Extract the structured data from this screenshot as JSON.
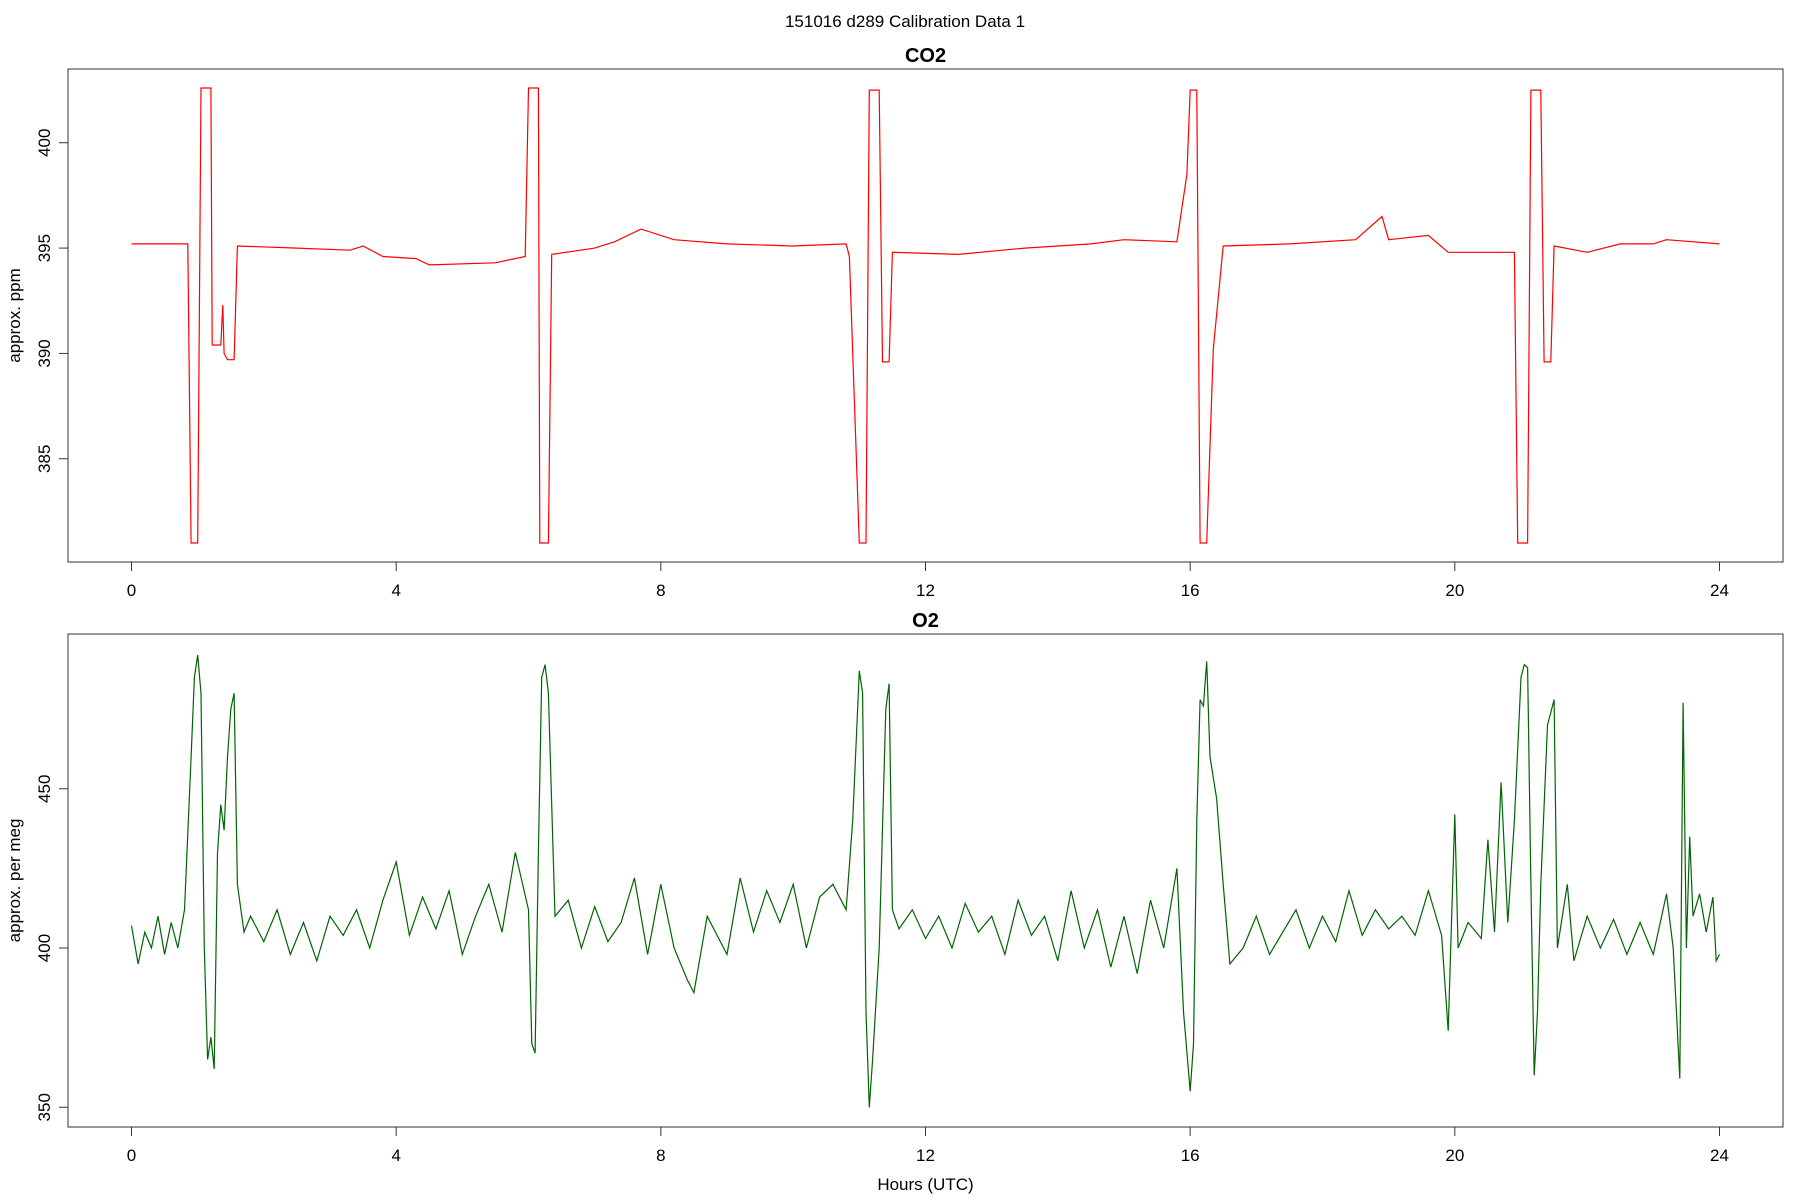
{
  "title": "151016   d289   Calibration Data 1",
  "chart_data": [
    {
      "type": "line",
      "title": "CO2",
      "ylabel": "approx. ppm",
      "color": "#ff0000",
      "x": [
        0,
        0.85,
        0.9,
        1.0,
        1.05,
        1.2,
        1.22,
        1.35,
        1.38,
        1.4,
        1.45,
        1.55,
        1.6,
        2.5,
        3.3,
        3.5,
        3.8,
        4.3,
        4.5,
        5.5,
        5.95,
        6.0,
        6.15,
        6.17,
        6.3,
        6.35,
        7.0,
        7.3,
        7.7,
        8.2,
        9.0,
        10.0,
        10.8,
        10.85,
        11.0,
        11.1,
        11.15,
        11.3,
        11.35,
        11.45,
        11.5,
        12.5,
        13.5,
        14.5,
        15.0,
        15.8,
        15.95,
        16.0,
        16.1,
        16.15,
        16.25,
        16.35,
        16.5,
        17.5,
        18.5,
        18.9,
        19.0,
        19.6,
        19.9,
        20.9,
        20.95,
        21.1,
        21.15,
        21.3,
        21.35,
        21.45,
        21.5,
        22.0,
        22.5,
        23.0,
        23.2,
        24.0
      ],
      "values": [
        395.2,
        395.2,
        381,
        381,
        402.6,
        402.6,
        390.4,
        390.4,
        392.3,
        390,
        389.7,
        389.7,
        395.1,
        395.0,
        394.9,
        395.1,
        394.6,
        394.5,
        394.2,
        394.3,
        394.6,
        402.6,
        402.6,
        381,
        381,
        394.7,
        395.0,
        395.3,
        395.9,
        395.4,
        395.2,
        395.1,
        395.2,
        394.6,
        381,
        381,
        402.5,
        402.5,
        389.6,
        389.6,
        394.8,
        394.7,
        395.0,
        395.2,
        395.4,
        395.3,
        398.5,
        402.5,
        402.5,
        381,
        381,
        390.2,
        395.1,
        395.2,
        395.4,
        396.5,
        395.4,
        395.6,
        394.8,
        394.8,
        381,
        381,
        402.5,
        402.5,
        389.6,
        389.6,
        395.1,
        394.8,
        395.2,
        395.2,
        395.4,
        395.2
      ],
      "xlim": [
        -0.96,
        24.96
      ],
      "xticks": [
        0,
        4,
        8,
        12,
        16,
        20,
        24
      ],
      "ylim": [
        380.1,
        403.5
      ],
      "yticks": [
        385,
        390,
        395,
        400
      ]
    },
    {
      "type": "line",
      "title": "O2",
      "ylabel": "approx. per meg",
      "xlabel": "Hours (UTC)",
      "color": "#006400",
      "x": [
        0,
        0.1,
        0.2,
        0.3,
        0.4,
        0.5,
        0.6,
        0.7,
        0.8,
        0.9,
        0.95,
        1.0,
        1.05,
        1.1,
        1.15,
        1.2,
        1.25,
        1.3,
        1.35,
        1.4,
        1.45,
        1.5,
        1.55,
        1.6,
        1.7,
        1.8,
        2.0,
        2.2,
        2.4,
        2.6,
        2.8,
        3.0,
        3.2,
        3.4,
        3.6,
        3.8,
        4.0,
        4.2,
        4.4,
        4.6,
        4.8,
        5.0,
        5.2,
        5.4,
        5.6,
        5.8,
        6.0,
        6.05,
        6.1,
        6.15,
        6.2,
        6.25,
        6.3,
        6.4,
        6.6,
        6.8,
        7.0,
        7.2,
        7.4,
        7.6,
        7.8,
        8.0,
        8.2,
        8.4,
        8.5,
        8.7,
        9.0,
        9.2,
        9.4,
        9.6,
        9.8,
        10.0,
        10.2,
        10.4,
        10.6,
        10.8,
        10.9,
        11.0,
        11.05,
        11.1,
        11.15,
        11.2,
        11.3,
        11.4,
        11.45,
        11.5,
        11.6,
        11.8,
        12.0,
        12.2,
        12.4,
        12.6,
        12.8,
        13.0,
        13.2,
        13.4,
        13.6,
        13.8,
        14.0,
        14.2,
        14.4,
        14.6,
        14.8,
        15.0,
        15.2,
        15.4,
        15.6,
        15.8,
        15.9,
        16.0,
        16.05,
        16.1,
        16.15,
        16.2,
        16.25,
        16.3,
        16.4,
        16.5,
        16.6,
        16.8,
        17.0,
        17.2,
        17.4,
        17.6,
        17.8,
        18.0,
        18.2,
        18.4,
        18.6,
        18.8,
        19.0,
        19.2,
        19.4,
        19.6,
        19.8,
        19.9,
        20.0,
        20.05,
        20.2,
        20.4,
        20.5,
        20.6,
        20.7,
        20.8,
        20.9,
        21.0,
        21.05,
        21.1,
        21.15,
        21.2,
        21.25,
        21.3,
        21.4,
        21.5,
        21.55,
        21.7,
        21.8,
        22.0,
        22.2,
        22.4,
        22.6,
        22.8,
        23.0,
        23.2,
        23.3,
        23.4,
        23.45,
        23.5,
        23.55,
        23.6,
        23.7,
        23.8,
        23.9,
        23.95,
        24.0
      ],
      "values": [
        407,
        395,
        405,
        400,
        410,
        398,
        408,
        400,
        412,
        460,
        485,
        492,
        480,
        400,
        365,
        372,
        362,
        430,
        445,
        437,
        460,
        475,
        480,
        420,
        405,
        410,
        402,
        412,
        398,
        408,
        396,
        410,
        404,
        412,
        400,
        415,
        427,
        404,
        416,
        406,
        418,
        398,
        410,
        420,
        405,
        430,
        412,
        370,
        367,
        430,
        485,
        489,
        480,
        410,
        415,
        400,
        413,
        402,
        408,
        422,
        398,
        420,
        400,
        390,
        386,
        410,
        398,
        422,
        405,
        418,
        408,
        420,
        400,
        416,
        420,
        412,
        440,
        487,
        480,
        380,
        350,
        365,
        400,
        475,
        483,
        412,
        406,
        412,
        403,
        410,
        400,
        414,
        405,
        410,
        398,
        415,
        404,
        410,
        396,
        418,
        400,
        412,
        394,
        410,
        392,
        415,
        400,
        425,
        380,
        355,
        370,
        440,
        478,
        476,
        490,
        460,
        447,
        420,
        395,
        400,
        410,
        398,
        405,
        412,
        400,
        410,
        402,
        418,
        404,
        412,
        406,
        410,
        404,
        418,
        404,
        374,
        442,
        400,
        408,
        403,
        434,
        405,
        452,
        408,
        440,
        485,
        489,
        488,
        420,
        360,
        380,
        420,
        470,
        478,
        400,
        420,
        396,
        410,
        400,
        409,
        398,
        408,
        398,
        417,
        400,
        359,
        477,
        400,
        435,
        410,
        417,
        405,
        416,
        396,
        398
      ],
      "xlim": [
        -0.96,
        24.96
      ],
      "xticks": [
        0,
        4,
        8,
        12,
        16,
        20,
        24
      ],
      "ylim": [
        343.8,
        498.6
      ],
      "yticks": [
        350,
        400,
        450
      ]
    }
  ]
}
